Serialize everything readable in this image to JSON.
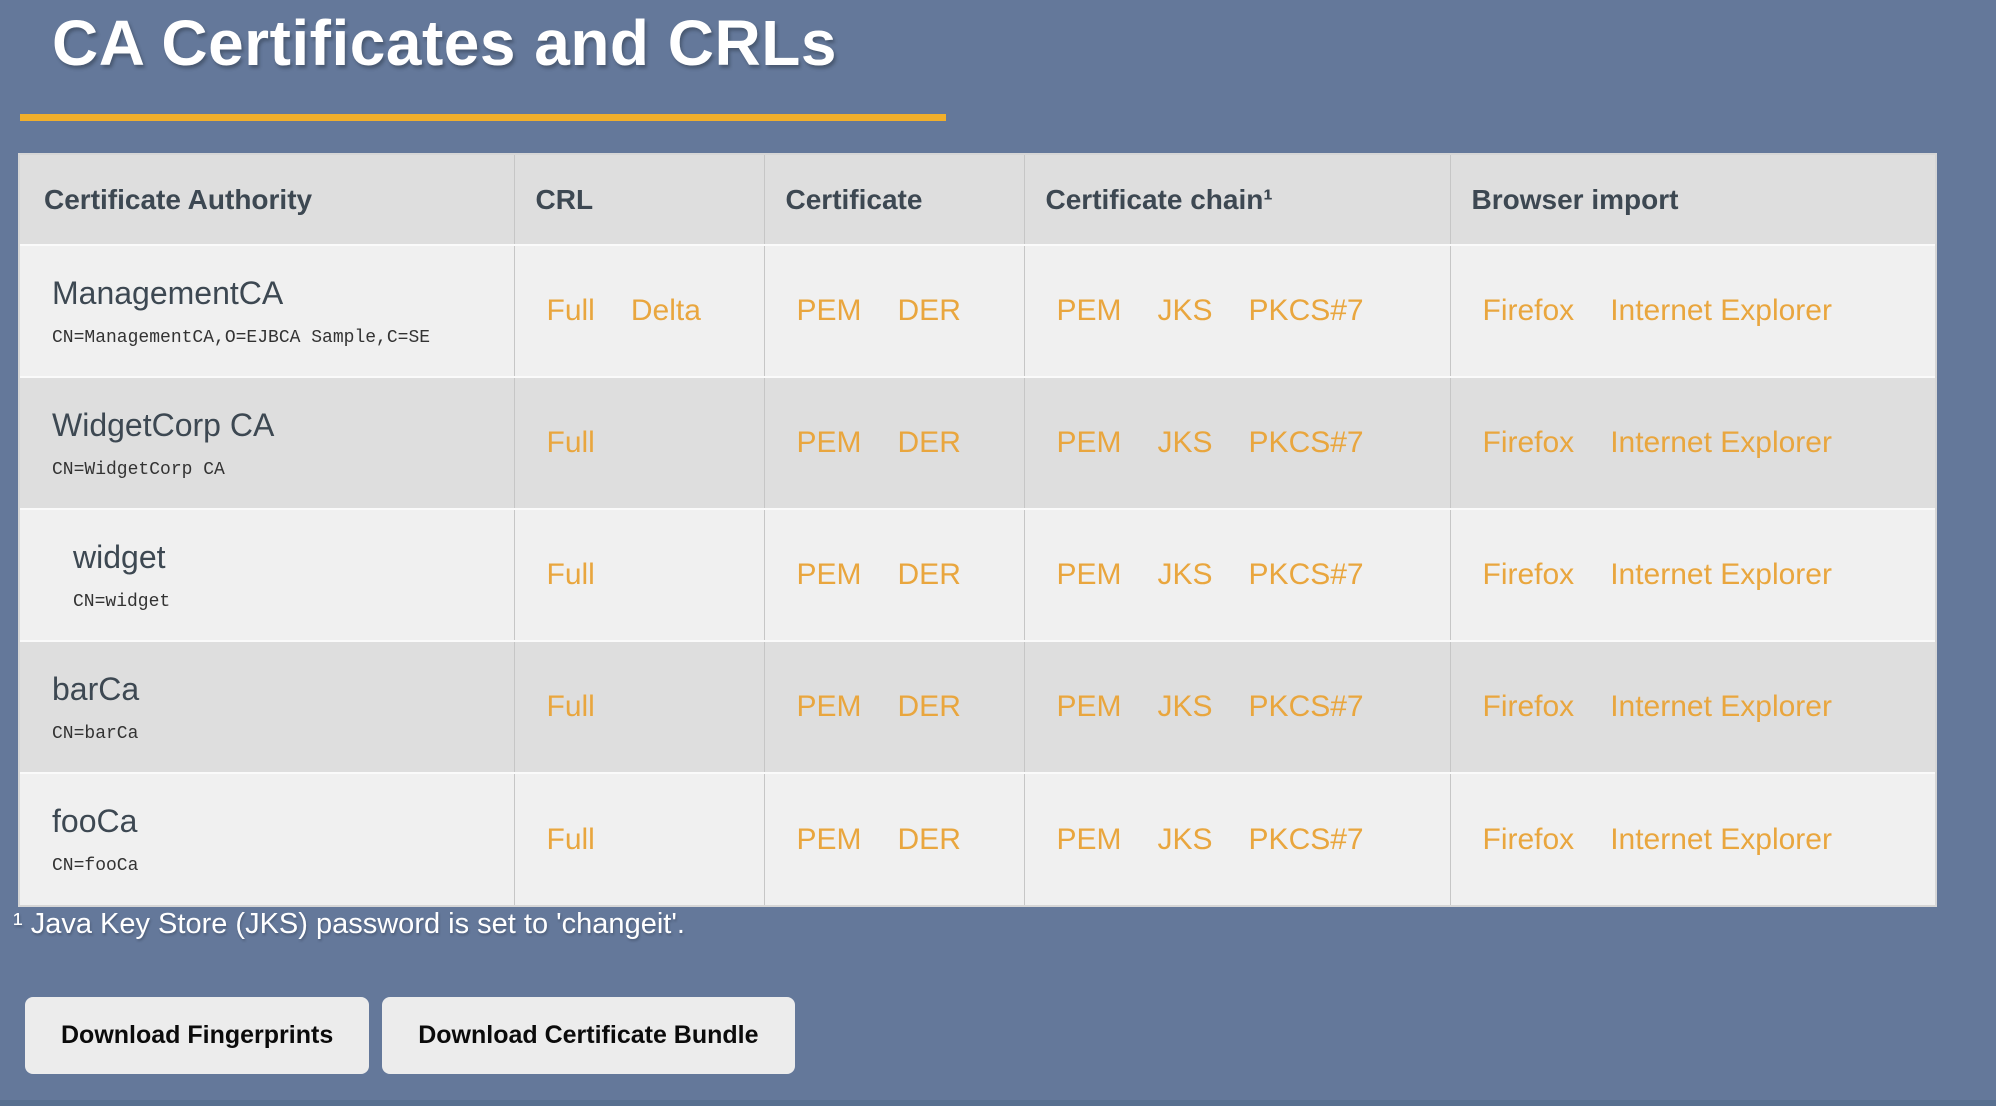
{
  "page": {
    "title": "CA Certificates and CRLs",
    "footnote": "¹ Java Key Store (JKS) password is set to 'changeit'.",
    "colors": {
      "background": "#64789a",
      "accent_underline": "#F1AF2B",
      "link": "#E9A63E",
      "header_background": "#dedede",
      "row_light": "#f0f0f0",
      "row_dark": "#dedede",
      "heading_text": "#3d4852",
      "bottom_strip": "#587090"
    }
  },
  "table": {
    "headers": [
      "Certificate Authority",
      "CRL",
      "Certificate",
      "Certificate chain¹",
      "Browser import"
    ],
    "rows": [
      {
        "name": "ManagementCA",
        "subject_dn": "CN=ManagementCA,O=EJBCA Sample,C=SE",
        "indent": false,
        "crl_links": [
          "Full",
          "Delta"
        ],
        "certificate_links": [
          "PEM",
          "DER"
        ],
        "chain_links": [
          "PEM",
          "JKS",
          "PKCS#7"
        ],
        "browser_links": [
          "Firefox",
          "Internet Explorer"
        ]
      },
      {
        "name": "WidgetCorp CA",
        "subject_dn": "CN=WidgetCorp CA",
        "indent": false,
        "crl_links": [
          "Full"
        ],
        "certificate_links": [
          "PEM",
          "DER"
        ],
        "chain_links": [
          "PEM",
          "JKS",
          "PKCS#7"
        ],
        "browser_links": [
          "Firefox",
          "Internet Explorer"
        ]
      },
      {
        "name": "widget",
        "subject_dn": "CN=widget",
        "indent": true,
        "crl_links": [
          "Full"
        ],
        "certificate_links": [
          "PEM",
          "DER"
        ],
        "chain_links": [
          "PEM",
          "JKS",
          "PKCS#7"
        ],
        "browser_links": [
          "Firefox",
          "Internet Explorer"
        ]
      },
      {
        "name": "barCa",
        "subject_dn": "CN=barCa",
        "indent": false,
        "crl_links": [
          "Full"
        ],
        "certificate_links": [
          "PEM",
          "DER"
        ],
        "chain_links": [
          "PEM",
          "JKS",
          "PKCS#7"
        ],
        "browser_links": [
          "Firefox",
          "Internet Explorer"
        ]
      },
      {
        "name": "fooCa",
        "subject_dn": "CN=fooCa",
        "indent": false,
        "crl_links": [
          "Full"
        ],
        "certificate_links": [
          "PEM",
          "DER"
        ],
        "chain_links": [
          "PEM",
          "JKS",
          "PKCS#7"
        ],
        "browser_links": [
          "Firefox",
          "Internet Explorer"
        ]
      }
    ]
  },
  "buttons": [
    {
      "label": "Download Fingerprints"
    },
    {
      "label": "Download Certificate Bundle"
    }
  ]
}
